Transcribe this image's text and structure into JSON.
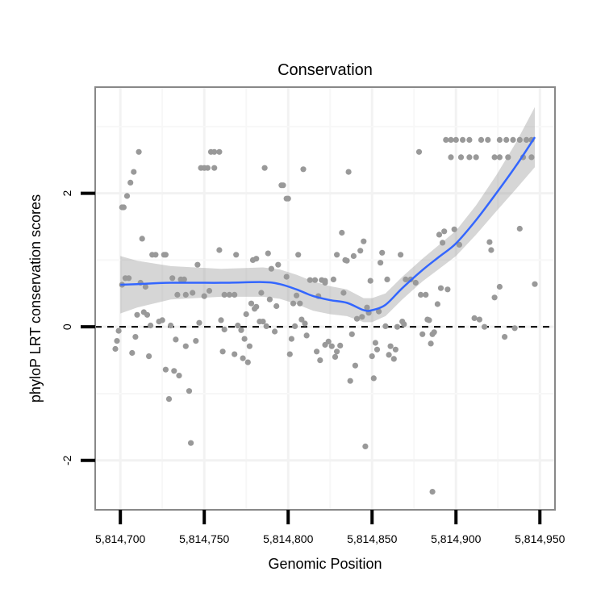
{
  "chart_data": {
    "type": "scatter",
    "title": "Conservation",
    "xlabel": "Genomic Position",
    "ylabel": "phyloP LRT conservation scores",
    "xlim": [
      5814685,
      5814959
    ],
    "ylim": [
      -2.74,
      3.59
    ],
    "x_ticks": [
      5814700,
      5814750,
      5814800,
      5814850,
      5814900,
      5814950
    ],
    "x_tick_labels": [
      "5,814,700",
      "5,814,750",
      "5,814,800",
      "5,814,850",
      "5,814,900",
      "5,814,950"
    ],
    "y_ticks": [
      -2,
      0,
      2
    ],
    "y_tick_labels": [
      "-2",
      "0",
      "2"
    ],
    "grid": true,
    "reference_line": {
      "y": 0,
      "style": "dashed"
    },
    "colors": {
      "points": "#999999",
      "smooth": "#3366FF",
      "band": "#999999",
      "reference": "#000000"
    },
    "points": [
      [
        5814711,
        2.62
      ],
      [
        5814708,
        2.32
      ],
      [
        5814706,
        2.16
      ],
      [
        5814704,
        1.96
      ],
      [
        5814701,
        1.79
      ],
      [
        5814702,
        1.79
      ],
      [
        5814713,
        1.32
      ],
      [
        5814719,
        1.08
      ],
      [
        5814721,
        1.08
      ],
      [
        5814726,
        1.08
      ],
      [
        5814727,
        1.08
      ],
      [
        5814703,
        0.73
      ],
      [
        5814705,
        0.73
      ],
      [
        5814701,
        0.63
      ],
      [
        5814712,
        0.66
      ],
      [
        5814715,
        0.6
      ],
      [
        5814710,
        0.18
      ],
      [
        5814714,
        0.22
      ],
      [
        5814716,
        0.18
      ],
      [
        5814718,
        0.02
      ],
      [
        5814723,
        0.08
      ],
      [
        5814725,
        0.1
      ],
      [
        5814730,
        0.02
      ],
      [
        5814699,
        -0.06
      ],
      [
        5814698,
        -0.21
      ],
      [
        5814697,
        -0.33
      ],
      [
        5814709,
        -0.15
      ],
      [
        5814707,
        -0.39
      ],
      [
        5814717,
        -0.44
      ],
      [
        5814733,
        -0.19
      ],
      [
        5814739,
        -0.29
      ],
      [
        5814745,
        -0.21
      ],
      [
        5814727,
        -0.64
      ],
      [
        5814732,
        -0.66
      ],
      [
        5814735,
        -0.73
      ],
      [
        5814741,
        -0.96
      ],
      [
        5814729,
        -1.08
      ],
      [
        5814742,
        -1.74
      ],
      [
        5814754,
        2.62
      ],
      [
        5814756,
        2.62
      ],
      [
        5814759,
        2.62
      ],
      [
        5814748,
        2.38
      ],
      [
        5814750,
        2.38
      ],
      [
        5814752,
        2.38
      ],
      [
        5814756,
        2.38
      ],
      [
        5814731,
        0.73
      ],
      [
        5814736,
        0.71
      ],
      [
        5814738,
        0.71
      ],
      [
        5814734,
        0.48
      ],
      [
        5814739,
        0.48
      ],
      [
        5814743,
        0.51
      ],
      [
        5814750,
        0.46
      ],
      [
        5814753,
        0.54
      ],
      [
        5814746,
        0.93
      ],
      [
        5814759,
        1.15
      ],
      [
        5814769,
        1.08
      ],
      [
        5814762,
        0.48
      ],
      [
        5814765,
        0.48
      ],
      [
        5814768,
        0.48
      ],
      [
        5814747,
        0.06
      ],
      [
        5814760,
        0.1
      ],
      [
        5814762,
        -0.04
      ],
      [
        5814770,
        0.02
      ],
      [
        5814772,
        -0.05
      ],
      [
        5814774,
        -0.18
      ],
      [
        5814777,
        -0.29
      ],
      [
        5814761,
        -0.37
      ],
      [
        5814768,
        -0.41
      ],
      [
        5814773,
        -0.47
      ],
      [
        5814776,
        -0.53
      ],
      [
        5814786,
        2.38
      ],
      [
        5814809,
        2.36
      ],
      [
        5814796,
        2.12
      ],
      [
        5814797,
        2.12
      ],
      [
        5814799,
        1.92
      ],
      [
        5814800,
        1.92
      ],
      [
        5814779,
        1.0
      ],
      [
        5814781,
        1.02
      ],
      [
        5814788,
        1.1
      ],
      [
        5814806,
        1.08
      ],
      [
        5814790,
        0.87
      ],
      [
        5814794,
        0.93
      ],
      [
        5814799,
        0.75
      ],
      [
        5814784,
        0.51
      ],
      [
        5814789,
        0.41
      ],
      [
        5814793,
        0.31
      ],
      [
        5814778,
        0.35
      ],
      [
        5814781,
        0.3
      ],
      [
        5814780,
        0.27
      ],
      [
        5814775,
        0.19
      ],
      [
        5814783,
        0.08
      ],
      [
        5814785,
        0.08
      ],
      [
        5814787,
        0.01
      ],
      [
        5814792,
        -0.07
      ],
      [
        5814802,
        -0.18
      ],
      [
        5814801,
        -0.41
      ],
      [
        5814803,
        0.35
      ],
      [
        5814807,
        0.35
      ],
      [
        5814805,
        0.47
      ],
      [
        5814808,
        0.11
      ],
      [
        5814810,
        0.05
      ],
      [
        5814804,
        0.01
      ],
      [
        5814811,
        -0.13
      ],
      [
        5814817,
        -0.37
      ],
      [
        5814819,
        -0.5
      ],
      [
        5814822,
        -0.27
      ],
      [
        5814813,
        0.7
      ],
      [
        5814816,
        0.7
      ],
      [
        5814820,
        0.7
      ],
      [
        5814822,
        0.66
      ],
      [
        5814818,
        0.46
      ],
      [
        5814836,
        2.32
      ],
      [
        5814878,
        2.62
      ],
      [
        5814894,
        2.8
      ],
      [
        5814897,
        2.8
      ],
      [
        5814900,
        2.8
      ],
      [
        5814904,
        2.8
      ],
      [
        5814908,
        2.8
      ],
      [
        5814915,
        2.8
      ],
      [
        5814919,
        2.8
      ],
      [
        5814926,
        2.8
      ],
      [
        5814930,
        2.8
      ],
      [
        5814934,
        2.8
      ],
      [
        5814938,
        2.8
      ],
      [
        5814942,
        2.8
      ],
      [
        5814945,
        2.8
      ],
      [
        5814897,
        2.54
      ],
      [
        5814903,
        2.54
      ],
      [
        5814908,
        2.54
      ],
      [
        5814912,
        2.54
      ],
      [
        5814923,
        2.54
      ],
      [
        5814926,
        2.54
      ],
      [
        5814931,
        2.54
      ],
      [
        5814940,
        2.54
      ],
      [
        5814945,
        2.54
      ],
      [
        5814832,
        1.41
      ],
      [
        5814845,
        1.28
      ],
      [
        5814829,
        1.08
      ],
      [
        5814834,
        1.0
      ],
      [
        5814835,
        0.99
      ],
      [
        5814839,
        1.06
      ],
      [
        5814843,
        1.14
      ],
      [
        5814856,
        1.11
      ],
      [
        5814855,
        0.96
      ],
      [
        5814867,
        1.08
      ],
      [
        5814890,
        1.38
      ],
      [
        5814893,
        1.43
      ],
      [
        5814899,
        1.46
      ],
      [
        5814892,
        1.26
      ],
      [
        5814902,
        1.23
      ],
      [
        5814920,
        1.27
      ],
      [
        5814921,
        1.15
      ],
      [
        5814938,
        1.47
      ],
      [
        5814947,
        0.64
      ],
      [
        5814926,
        0.6
      ],
      [
        5814923,
        0.44
      ],
      [
        5814822,
        0.69
      ],
      [
        5814827,
        0.71
      ],
      [
        5814849,
        0.69
      ],
      [
        5814859,
        0.71
      ],
      [
        5814870,
        0.71
      ],
      [
        5814873,
        0.71
      ],
      [
        5814876,
        0.66
      ],
      [
        5814833,
        0.51
      ],
      [
        5814879,
        0.48
      ],
      [
        5814882,
        0.48
      ],
      [
        5814891,
        0.58
      ],
      [
        5814895,
        0.56
      ],
      [
        5814889,
        0.34
      ],
      [
        5814847,
        0.29
      ],
      [
        5814848,
        0.21
      ],
      [
        5814854,
        0.23
      ],
      [
        5814841,
        0.12
      ],
      [
        5814844,
        0.15
      ],
      [
        5814858,
        0.01
      ],
      [
        5814865,
        0.0
      ],
      [
        5814868,
        0.08
      ],
      [
        5814869,
        0.04
      ],
      [
        5814883,
        0.11
      ],
      [
        5814884,
        0.1
      ],
      [
        5814911,
        0.13
      ],
      [
        5814914,
        0.11
      ],
      [
        5814917,
        0.0
      ],
      [
        5814935,
        -0.02
      ],
      [
        5814929,
        -0.15
      ],
      [
        5814838,
        -0.11
      ],
      [
        5814880,
        -0.11
      ],
      [
        5814887,
        -0.08
      ],
      [
        5814886,
        -0.11
      ],
      [
        5814885,
        -0.25
      ],
      [
        5814824,
        -0.22
      ],
      [
        5814826,
        -0.29
      ],
      [
        5814831,
        -0.28
      ],
      [
        5814829,
        -0.37
      ],
      [
        5814828,
        -0.45
      ],
      [
        5814852,
        -0.24
      ],
      [
        5814853,
        -0.34
      ],
      [
        5814850,
        -0.44
      ],
      [
        5814861,
        -0.29
      ],
      [
        5814864,
        -0.34
      ],
      [
        5814860,
        -0.42
      ],
      [
        5814863,
        -0.48
      ],
      [
        5814840,
        -0.58
      ],
      [
        5814837,
        -0.81
      ],
      [
        5814851,
        -0.77
      ],
      [
        5814846,
        -1.79
      ],
      [
        5814886,
        -2.47
      ]
    ],
    "smooth": {
      "x": [
        5814700,
        5814710,
        5814730,
        5814760,
        5814785,
        5814795,
        5814805,
        5814815,
        5814825,
        5814835,
        5814845,
        5814850,
        5814858,
        5814868,
        5814880,
        5814890,
        5814900,
        5814912,
        5814924,
        5814936,
        5814947
      ],
      "y": [
        0.63,
        0.64,
        0.66,
        0.66,
        0.67,
        0.64,
        0.56,
        0.46,
        0.4,
        0.36,
        0.25,
        0.25,
        0.33,
        0.58,
        0.85,
        1.05,
        1.25,
        1.6,
        2.0,
        2.42,
        2.84
      ],
      "se": [
        0.43,
        0.35,
        0.25,
        0.21,
        0.22,
        0.22,
        0.22,
        0.22,
        0.21,
        0.2,
        0.18,
        0.18,
        0.17,
        0.17,
        0.17,
        0.18,
        0.19,
        0.22,
        0.27,
        0.35,
        0.45
      ]
    }
  }
}
